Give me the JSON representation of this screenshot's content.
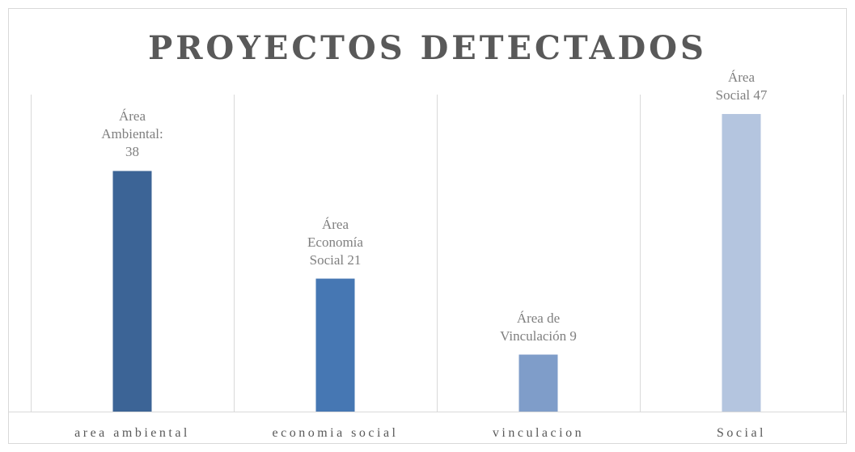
{
  "chart_data": {
    "type": "bar",
    "title": "PROYECTOS DETECTADOS",
    "categories": [
      "area ambiental",
      "economia social",
      "vinculacion",
      "Social"
    ],
    "values": [
      38,
      21,
      9,
      47
    ],
    "value_labels": [
      "Área\nAmbiental:\n38",
      "Área\nEconomía\nSocial  21",
      "Área de\nVinculación 9",
      "Área\nSocial  47"
    ],
    "colors": [
      "#3c6496",
      "#4677b3",
      "#7f9dc9",
      "#b4c5df"
    ]
  }
}
